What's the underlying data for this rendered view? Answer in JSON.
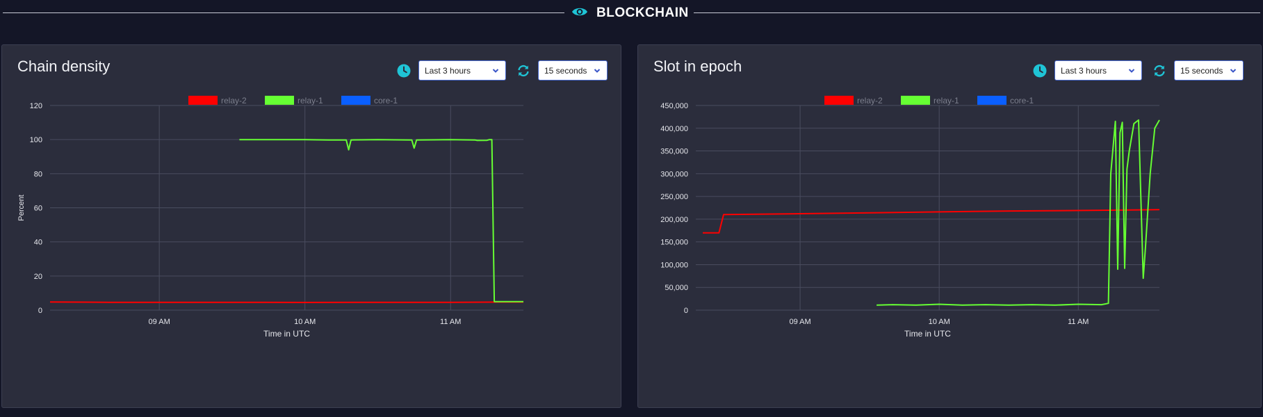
{
  "section": {
    "title": "BLOCKCHAIN",
    "icon": "eye-icon"
  },
  "colors": {
    "accent": "#1fc4d6",
    "relay2": "#ff0000",
    "relay1": "#66ff33",
    "core1": "#0a5fff"
  },
  "panels": [
    {
      "title": "Chain density",
      "time_range": "Last 3 hours",
      "refresh_interval": "15 seconds"
    },
    {
      "title": "Slot in epoch",
      "time_range": "Last 3 hours",
      "refresh_interval": "15 seconds"
    }
  ],
  "chart_data": [
    {
      "type": "line",
      "title": "",
      "xlabel": "Time in UTC",
      "ylabel": "Percent",
      "x_ticks": [
        "09 AM",
        "10 AM",
        "11 AM"
      ],
      "xlim": [
        "08:15",
        "11:30"
      ],
      "ylim": [
        0,
        120
      ],
      "y_ticks": [
        0,
        20,
        40,
        60,
        80,
        100,
        120
      ],
      "y_tick_labels": [
        "0",
        "20",
        "40",
        "60",
        "80",
        "100",
        "120"
      ],
      "grid": true,
      "legend_position": "top-center",
      "series": [
        {
          "name": "relay-2",
          "color": "#ff0000",
          "x": [
            "08:15",
            "08:40",
            "09:30",
            "10:00",
            "10:30",
            "11:00",
            "11:20",
            "11:30"
          ],
          "y": [
            4.8,
            4.6,
            4.6,
            4.5,
            4.6,
            4.6,
            4.7,
            4.7
          ]
        },
        {
          "name": "relay-1",
          "color": "#66ff33",
          "x": [
            "09:33",
            "10:00",
            "10:10",
            "10:17",
            "10:18",
            "10:19",
            "10:30",
            "10:44",
            "10:45",
            "10:46",
            "11:00",
            "11:10",
            "11:11",
            "11:15",
            "11:16",
            "11:17",
            "11:18",
            "11:30"
          ],
          "y": [
            100,
            100,
            99.8,
            99.8,
            94,
            99.8,
            100,
            99.8,
            95,
            99.8,
            100,
            99.8,
            99.5,
            99.6,
            100,
            100,
            5,
            5
          ]
        },
        {
          "name": "core-1",
          "color": "#0a5fff",
          "x": [],
          "y": []
        }
      ]
    },
    {
      "type": "line",
      "title": "",
      "xlabel": "Time in UTC",
      "ylabel": "",
      "x_ticks": [
        "09 AM",
        "10 AM",
        "11 AM"
      ],
      "xlim": [
        "08:15",
        "11:35"
      ],
      "ylim": [
        0,
        450000
      ],
      "y_ticks": [
        0,
        50000,
        100000,
        150000,
        200000,
        250000,
        300000,
        350000,
        400000,
        450000
      ],
      "y_tick_labels": [
        "0",
        "50,000",
        "100,000",
        "150,000",
        "200,000",
        "250,000",
        "300,000",
        "350,000",
        "400,000",
        "450,000"
      ],
      "grid": true,
      "legend_position": "top-center",
      "series": [
        {
          "name": "relay-2",
          "color": "#ff0000",
          "x": [
            "08:18",
            "08:25",
            "08:27",
            "09:00",
            "09:30",
            "10:00",
            "10:30",
            "11:00",
            "11:20",
            "11:35"
          ],
          "y": [
            170000,
            170000,
            210000,
            212000,
            214000,
            216000,
            218000,
            219000,
            220000,
            221000
          ]
        },
        {
          "name": "relay-1",
          "color": "#66ff33",
          "x": [
            "09:33",
            "09:40",
            "09:50",
            "10:00",
            "10:10",
            "10:20",
            "10:30",
            "10:40",
            "10:50",
            "11:00",
            "11:10",
            "11:13",
            "11:14",
            "11:16",
            "11:17",
            "11:18",
            "11:19",
            "11:20",
            "11:21",
            "11:22",
            "11:24",
            "11:26",
            "11:28",
            "11:29",
            "11:31",
            "11:33",
            "11:35"
          ],
          "y": [
            11000,
            12000,
            11000,
            13000,
            11000,
            12000,
            11000,
            12000,
            11000,
            13000,
            12000,
            15000,
            300000,
            415000,
            90000,
            390000,
            413000,
            92000,
            310000,
            350000,
            410000,
            418000,
            70000,
            140000,
            300000,
            400000,
            418000
          ]
        },
        {
          "name": "core-1",
          "color": "#0a5fff",
          "x": [],
          "y": []
        }
      ]
    }
  ]
}
